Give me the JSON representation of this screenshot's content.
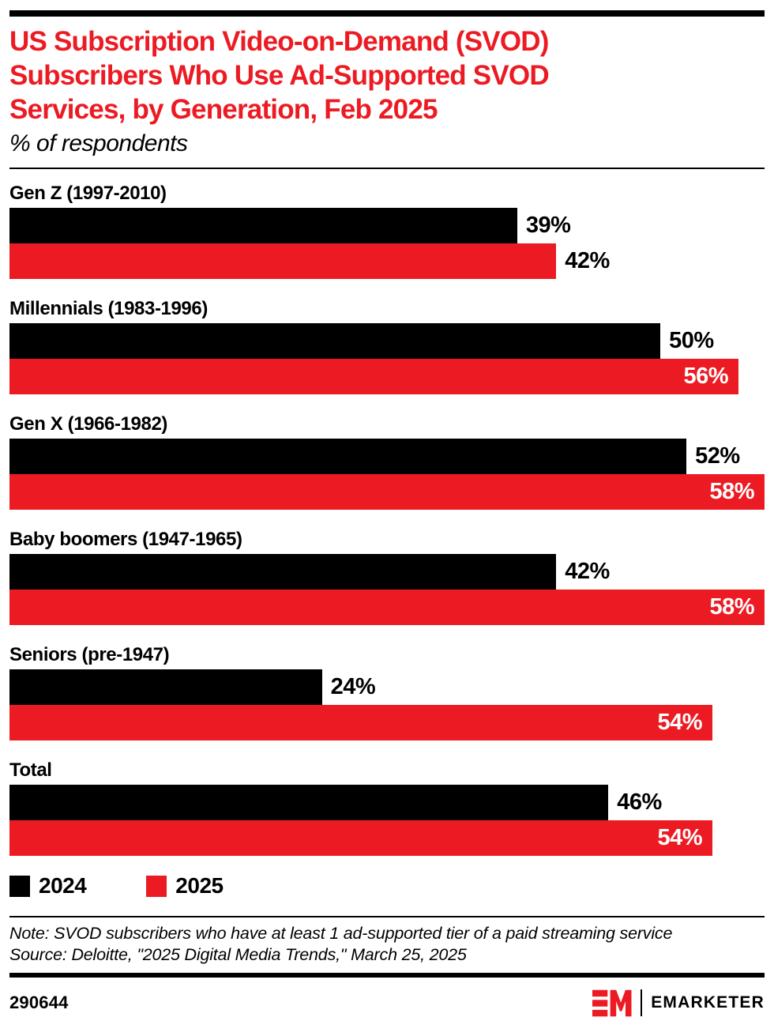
{
  "header": {
    "title_lines": [
      "US Subscription Video-on-Demand (SVOD)",
      "Subscribers Who Use Ad-Supported SVOD",
      "Services, by Generation, Feb 2025"
    ],
    "subtitle": "% of respondents"
  },
  "chart_data": {
    "type": "bar",
    "orientation": "horizontal",
    "title": "US Subscription Video-on-Demand (SVOD) Subscribers Who Use Ad-Supported SVOD Services, by Generation, Feb 2025",
    "xlabel": "",
    "ylabel": "% of respondents",
    "xlim": [
      0,
      58
    ],
    "grid": false,
    "legend_position": "bottom",
    "value_suffix": "%",
    "categories": [
      "Gen Z (1997-2010)",
      "Millennials (1983-1996)",
      "Gen X (1966-1982)",
      "Baby boomers (1947-1965)",
      "Seniors (pre-1947)",
      "Total"
    ],
    "series": [
      {
        "name": "2024",
        "color": "#000000",
        "values": [
          39,
          50,
          52,
          42,
          24,
          46
        ]
      },
      {
        "name": "2025",
        "color": "#ec1b23",
        "values": [
          42,
          56,
          58,
          58,
          54,
          54
        ]
      }
    ]
  },
  "legend": {
    "items": [
      {
        "label": "2024",
        "color": "#000000"
      },
      {
        "label": "2025",
        "color": "#ec1b23"
      }
    ]
  },
  "footnotes": {
    "note": "Note: SVOD subscribers who have at least 1 ad-supported tier of a paid streaming service",
    "source": "Source: Deloitte, \"2025 Digital Media Trends,\" March 25, 2025"
  },
  "footer": {
    "chart_id": "290644",
    "brand_monogram": "EM",
    "brand_name": "EMARKETER"
  },
  "colors": {
    "accent_red": "#ec1b23",
    "black": "#000000",
    "inside_label": "#ffffff"
  }
}
